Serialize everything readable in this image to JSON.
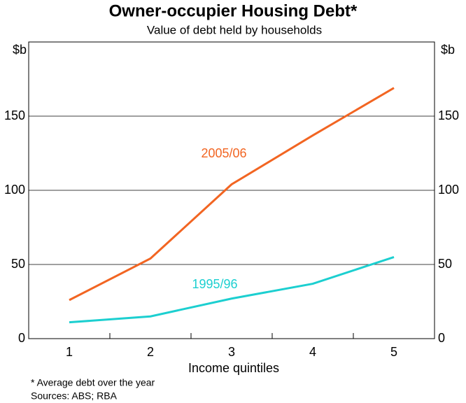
{
  "chart_data": {
    "type": "line",
    "title": "Owner-occupier Housing Debt*",
    "subtitle": "Value of debt held by households",
    "y_label": "$b",
    "x_label": "Income quintiles",
    "categories": [
      "1",
      "2",
      "3",
      "4",
      "5"
    ],
    "series": [
      {
        "name": "2005/06",
        "color": "#f26522",
        "values": [
          26,
          54,
          104,
          137,
          169
        ]
      },
      {
        "name": "1995/96",
        "color": "#1ccfd0",
        "values": [
          11,
          15,
          27,
          37,
          55
        ]
      }
    ],
    "ylim": [
      0,
      200
    ],
    "yticks": [
      0,
      50,
      100,
      150
    ],
    "grid": true,
    "notes": [
      "*   Average debt over the year",
      "Sources: ABS; RBA"
    ]
  }
}
